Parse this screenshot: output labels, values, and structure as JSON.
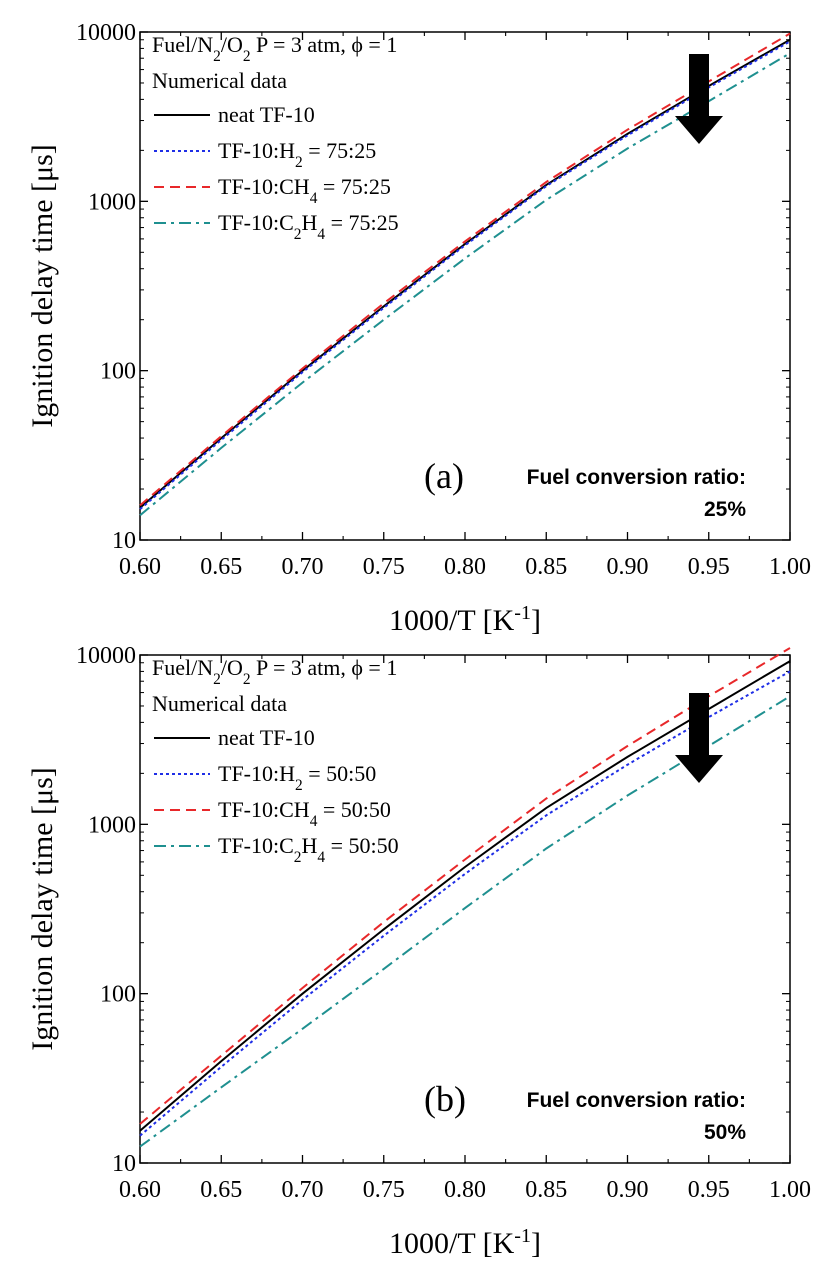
{
  "chart_data": [
    {
      "type": "line",
      "panel_label": "(a)",
      "annotation_lines": [
        "Fuel conversion ratio:",
        "25%"
      ],
      "conditions": "Fuel/N2/O2 P = 3 atm, ϕ = 1",
      "legend_title": "Numerical data",
      "legend_placement": "top-left",
      "xlabel": "1000/T [K-1]",
      "ylabel": "Ignition delay time [μs]",
      "xlim": [
        0.6,
        1.0
      ],
      "ylim": [
        10,
        10000
      ],
      "yscale": "log",
      "grid": false,
      "xticks": [
        "0.60",
        "0.65",
        "0.70",
        "0.75",
        "0.80",
        "0.85",
        "0.90",
        "0.95",
        "1.00"
      ],
      "yticks": [
        "10",
        "100",
        "1000",
        "10000"
      ],
      "series": [
        {
          "name": "neat TF-10",
          "color": "#000000",
          "dash": "solid",
          "x": [
            0.6,
            0.65,
            0.7,
            0.75,
            0.8,
            0.85,
            0.9,
            0.95,
            1.0
          ],
          "values": [
            15.5,
            40,
            100,
            240,
            560,
            1250,
            2500,
            4800,
            9000
          ]
        },
        {
          "name": "TF-10:H2 = 75:25",
          "color": "#1f2ee6",
          "dash": "dot",
          "x": [
            0.6,
            0.65,
            0.7,
            0.75,
            0.8,
            0.85,
            0.9,
            0.95,
            1.0
          ],
          "values": [
            15.2,
            39,
            98,
            235,
            550,
            1230,
            2450,
            4700,
            8800
          ]
        },
        {
          "name": "TF-10:CH4 = 75:25",
          "color": "#e8282a",
          "dash": "dash",
          "x": [
            0.6,
            0.65,
            0.7,
            0.75,
            0.8,
            0.85,
            0.9,
            0.95,
            1.0
          ],
          "values": [
            16,
            41,
            103,
            250,
            580,
            1300,
            2650,
            5100,
            9800
          ]
        },
        {
          "name": "TF-10:C2H4 = 75:25",
          "color": "#1f9090",
          "dash": "dashdot",
          "x": [
            0.6,
            0.65,
            0.7,
            0.75,
            0.8,
            0.85,
            0.9,
            0.95,
            1.0
          ],
          "values": [
            14,
            35,
            85,
            200,
            460,
            1020,
            2050,
            3900,
            7500
          ]
        }
      ]
    },
    {
      "type": "line",
      "panel_label": "(b)",
      "annotation_lines": [
        "Fuel conversion ratio:",
        "50%"
      ],
      "conditions": "Fuel/N2/O2 P = 3 atm, ϕ = 1",
      "legend_title": "Numerical data",
      "legend_placement": "top-left",
      "xlabel": "1000/T [K-1]",
      "ylabel": "Ignition delay time [μs]",
      "xlim": [
        0.6,
        1.0
      ],
      "ylim": [
        10,
        10000
      ],
      "yscale": "log",
      "grid": false,
      "xticks": [
        "0.60",
        "0.65",
        "0.70",
        "0.75",
        "0.80",
        "0.85",
        "0.90",
        "0.95",
        "1.00"
      ],
      "yticks": [
        "10",
        "100",
        "1000",
        "10000"
      ],
      "series": [
        {
          "name": "neat TF-10",
          "color": "#000000",
          "dash": "solid",
          "x": [
            0.6,
            0.65,
            0.7,
            0.75,
            0.8,
            0.85,
            0.9,
            0.95,
            1.0
          ],
          "values": [
            15.5,
            40,
            100,
            240,
            560,
            1250,
            2500,
            4800,
            9200
          ]
        },
        {
          "name": "TF-10:H2 = 50:50",
          "color": "#1f2ee6",
          "dash": "dot",
          "x": [
            0.6,
            0.65,
            0.7,
            0.75,
            0.8,
            0.85,
            0.9,
            0.95,
            1.0
          ],
          "values": [
            14.5,
            37,
            92,
            220,
            510,
            1130,
            2250,
            4300,
            8000
          ]
        },
        {
          "name": "TF-10:CH4 = 50:50",
          "color": "#e8282a",
          "dash": "dash",
          "x": [
            0.6,
            0.65,
            0.7,
            0.75,
            0.8,
            0.85,
            0.9,
            0.95,
            1.0
          ],
          "values": [
            17,
            43,
            108,
            265,
            620,
            1420,
            2900,
            5700,
            11000
          ]
        },
        {
          "name": "TF-10:C2H4 = 50:50",
          "color": "#1f9090",
          "dash": "dashdot",
          "x": [
            0.6,
            0.65,
            0.7,
            0.75,
            0.8,
            0.85,
            0.9,
            0.95,
            1.0
          ],
          "values": [
            12.5,
            28,
            62,
            140,
            320,
            720,
            1480,
            2900,
            5700
          ]
        }
      ]
    }
  ]
}
